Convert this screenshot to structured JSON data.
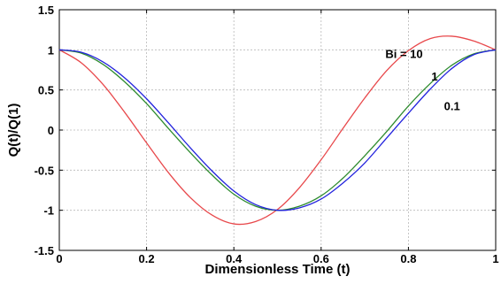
{
  "chart_data": {
    "type": "line",
    "xlabel": "Dimensionless Time (t)",
    "ylabel": "Q(t)/Q(1)",
    "xlim": [
      0,
      1
    ],
    "ylim": [
      -1.5,
      1.5
    ],
    "grid": true,
    "x_ticks": [
      "0",
      "0.2",
      "0.4",
      "0.6",
      "0.8",
      "1"
    ],
    "y_ticks": [
      "1.5",
      "1",
      "0.5",
      "0",
      "-0.5",
      "-1",
      "-1.5"
    ],
    "x": [
      0,
      0.05,
      0.1,
      0.15,
      0.2,
      0.25,
      0.3,
      0.35,
      0.4,
      0.45,
      0.5,
      0.55,
      0.6,
      0.65,
      0.7,
      0.75,
      0.8,
      0.85,
      0.9,
      0.95,
      1.0
    ],
    "series": [
      {
        "name": "",
        "color": "#e8484b",
        "values": [
          1.0,
          0.84,
          0.57,
          0.22,
          -0.16,
          -0.53,
          -0.84,
          -1.06,
          -1.17,
          -1.14,
          -0.99,
          -0.72,
          -0.37,
          0.02,
          0.4,
          0.74,
          0.99,
          1.14,
          1.17,
          1.11,
          1.0
        ]
      },
      {
        "name": "",
        "color": "#2e8b2e",
        "values": [
          1.0,
          0.96,
          0.82,
          0.6,
          0.33,
          0.02,
          -0.28,
          -0.56,
          -0.8,
          -0.95,
          -1.0,
          -0.95,
          -0.82,
          -0.6,
          -0.32,
          -0.02,
          0.3,
          0.58,
          0.81,
          0.95,
          1.0
        ]
      },
      {
        "name": "",
        "color": "#2222dd",
        "values": [
          1.0,
          0.97,
          0.85,
          0.65,
          0.39,
          0.09,
          -0.22,
          -0.51,
          -0.76,
          -0.93,
          -1.0,
          -0.97,
          -0.86,
          -0.66,
          -0.41,
          -0.1,
          0.21,
          0.51,
          0.77,
          0.94,
          1.0
        ]
      }
    ],
    "annotations": [
      {
        "text": "Bi = 10",
        "x": 0.79,
        "y": 0.9
      },
      {
        "text": "1",
        "x": 0.86,
        "y": 0.62
      },
      {
        "text": "0.1",
        "x": 0.9,
        "y": 0.25
      }
    ]
  }
}
